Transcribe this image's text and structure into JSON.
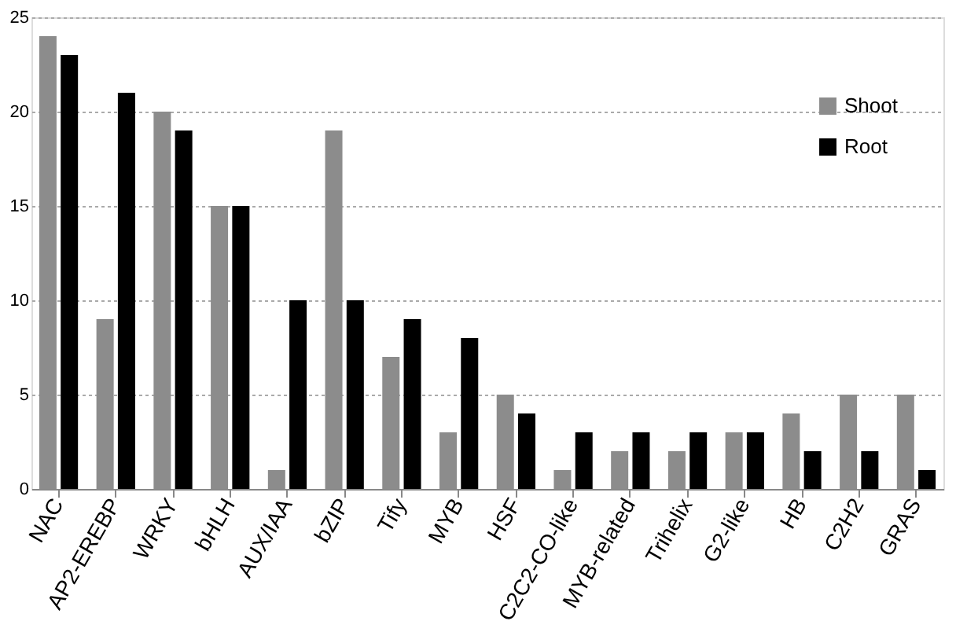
{
  "chart_data": {
    "type": "bar",
    "categories": [
      "NAC",
      "AP2-EREBP",
      "WRKY",
      "bHLH",
      "AUX/IAA",
      "bZIP",
      "Tify",
      "MYB",
      "HSF",
      "C2C2-CO-like",
      "MYB-related",
      "Trihelix",
      "G2-like",
      "HB",
      "C2H2",
      "GRAS"
    ],
    "series": [
      {
        "name": "Shoot",
        "color": "#8c8c8c",
        "values": [
          24,
          9,
          20,
          15,
          1,
          19,
          7,
          3,
          5,
          1,
          2,
          2,
          3,
          4,
          5,
          5
        ]
      },
      {
        "name": "Root",
        "color": "#000000",
        "values": [
          23,
          21,
          19,
          15,
          10,
          10,
          9,
          8,
          4,
          3,
          3,
          3,
          3,
          2,
          2,
          1
        ]
      }
    ],
    "ylim": [
      0,
      25
    ],
    "yticks": [
      0,
      5,
      10,
      15,
      20,
      25
    ],
    "grid": "y",
    "legend": "right"
  }
}
